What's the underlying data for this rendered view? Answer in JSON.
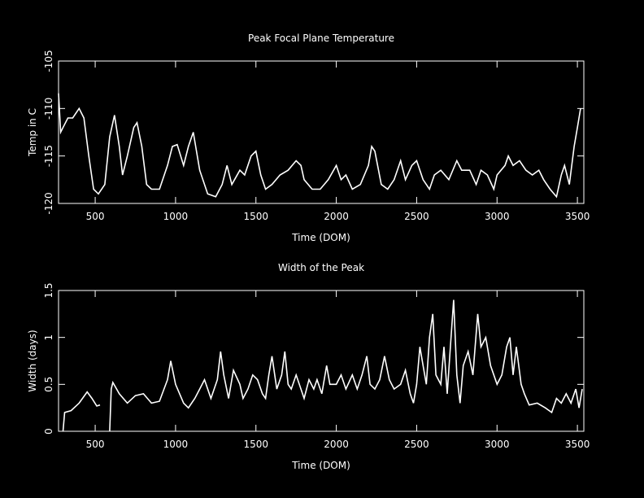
{
  "chart_data": [
    {
      "type": "line",
      "title": "Peak Focal Plane Temperature",
      "xlabel": "Time (DOM)",
      "ylabel": "Temp in C",
      "xlim": [
        272,
        3540
      ],
      "xticks": [
        500,
        1000,
        1500,
        2000,
        2500,
        3000,
        3500
      ],
      "ylim": [
        -120,
        -105
      ],
      "yticks": [
        -120,
        -115,
        -110,
        -105
      ],
      "series": [
        {
          "color": "#ffffff",
          "x": [
            272,
            285,
            300,
            330,
            360,
            400,
            430,
            460,
            490,
            520,
            560,
            590,
            620,
            650,
            670,
            700,
            740,
            760,
            790,
            820,
            850,
            900,
            950,
            980,
            1010,
            1050,
            1080,
            1110,
            1150,
            1200,
            1250,
            1290,
            1320,
            1350,
            1400,
            1430,
            1470,
            1500,
            1530,
            1560,
            1600,
            1650,
            1700,
            1750,
            1780,
            1800,
            1850,
            1900,
            1950,
            2000,
            2030,
            2060,
            2100,
            2150,
            2200,
            2220,
            2240,
            2280,
            2320,
            2360,
            2400,
            2430,
            2470,
            2500,
            2540,
            2580,
            2610,
            2650,
            2700,
            2750,
            2780,
            2830,
            2870,
            2900,
            2940,
            2980,
            3000,
            3050,
            3070,
            3100,
            3140,
            3180,
            3220,
            3260,
            3290,
            3330,
            3370,
            3400,
            3420,
            3450,
            3480,
            3500,
            3520
          ],
          "values": [
            -108.4,
            -112.5,
            -112,
            -111,
            -111,
            -110,
            -111,
            -115,
            -118.5,
            -119,
            -118,
            -113,
            -110.7,
            -114,
            -117,
            -115,
            -112,
            -111.5,
            -114,
            -118,
            -118.5,
            -118.5,
            -116,
            -114,
            -113.8,
            -116,
            -114,
            -112.5,
            -116.5,
            -119,
            -119.3,
            -118,
            -116,
            -118,
            -116.5,
            -117,
            -115,
            -114.5,
            -117,
            -118.5,
            -118,
            -117,
            -116.5,
            -115.5,
            -116,
            -117.5,
            -118.5,
            -118.5,
            -117.5,
            -116,
            -117.5,
            -117,
            -118.5,
            -118,
            -116,
            -114,
            -114.5,
            -118,
            -118.5,
            -117.5,
            -115.5,
            -117.5,
            -116,
            -115.5,
            -117.5,
            -118.5,
            -117,
            -116.5,
            -117.5,
            -115.5,
            -116.5,
            -116.5,
            -118,
            -116.5,
            -117,
            -118.5,
            -117,
            -116,
            -115,
            -116,
            -115.5,
            -116.5,
            -117,
            -116.5,
            -117.5,
            -118.5,
            -119.3,
            -117,
            -116,
            -118,
            -114,
            -112,
            -110
          ]
        }
      ]
    },
    {
      "type": "line",
      "title": "Width of the Peak",
      "xlabel": "Time (DOM)",
      "ylabel": "Width (days)",
      "xlim": [
        272,
        3540
      ],
      "xticks": [
        500,
        1000,
        1500,
        2000,
        2500,
        3000,
        3500
      ],
      "ylim": [
        0,
        1.5
      ],
      "yticks": [
        0,
        0.5,
        1,
        1.5
      ],
      "series": [
        {
          "color": "#ffffff",
          "x": [
            300,
            310,
            350,
            400,
            450,
            480,
            510,
            530,
            540,
            550,
            570,
            590,
            600,
            610,
            650,
            700,
            750,
            800,
            850,
            900,
            950,
            970,
            1000,
            1050,
            1080,
            1120,
            1150,
            1180,
            1220,
            1260,
            1280,
            1300,
            1330,
            1360,
            1400,
            1420,
            1450,
            1480,
            1510,
            1540,
            1560,
            1580,
            1600,
            1630,
            1660,
            1680,
            1700,
            1720,
            1750,
            1780,
            1800,
            1830,
            1860,
            1880,
            1910,
            1940,
            1960,
            2000,
            2030,
            2060,
            2100,
            2130,
            2160,
            2190,
            2210,
            2240,
            2270,
            2300,
            2330,
            2360,
            2400,
            2430,
            2460,
            2480,
            2500,
            2520,
            2540,
            2560,
            2580,
            2600,
            2620,
            2650,
            2670,
            2690,
            2710,
            2730,
            2750,
            2770,
            2790,
            2820,
            2850,
            2880,
            2900,
            2930,
            2960,
            3000,
            3030,
            3060,
            3080,
            3100,
            3120,
            3150,
            3170,
            3200,
            3250,
            3300,
            3340,
            3370,
            3400,
            3430,
            3460,
            3490,
            3510,
            3530
          ],
          "values": [
            0,
            0.2,
            0.22,
            0.3,
            0.42,
            0.35,
            0.27,
            0.28,
            null,
            0.25,
            null,
            0,
            0.45,
            0.52,
            0.4,
            0.3,
            0.38,
            0.4,
            0.3,
            0.32,
            0.55,
            0.75,
            0.5,
            0.3,
            0.25,
            0.35,
            0.45,
            0.55,
            0.35,
            0.55,
            0.85,
            0.6,
            0.35,
            0.65,
            0.5,
            0.35,
            0.45,
            0.6,
            0.55,
            0.4,
            0.35,
            0.6,
            0.8,
            0.45,
            0.6,
            0.85,
            0.5,
            0.45,
            0.6,
            0.45,
            0.35,
            0.55,
            0.45,
            0.55,
            0.4,
            0.7,
            0.5,
            0.5,
            0.6,
            0.45,
            0.6,
            0.45,
            0.6,
            0.8,
            0.5,
            0.45,
            0.55,
            0.8,
            0.55,
            0.45,
            0.5,
            0.65,
            0.4,
            0.3,
            0.5,
            0.9,
            0.7,
            0.5,
            1.0,
            1.25,
            0.6,
            0.5,
            0.9,
            0.4,
            0.9,
            1.4,
            0.6,
            0.3,
            0.7,
            0.85,
            0.6,
            1.25,
            0.9,
            1.0,
            0.7,
            0.5,
            0.6,
            0.9,
            1.0,
            0.6,
            0.9,
            0.5,
            0.4,
            0.28,
            0.3,
            0.25,
            0.2,
            0.35,
            0.3,
            0.4,
            0.3,
            0.45,
            0.25,
            0.45
          ]
        }
      ]
    }
  ]
}
